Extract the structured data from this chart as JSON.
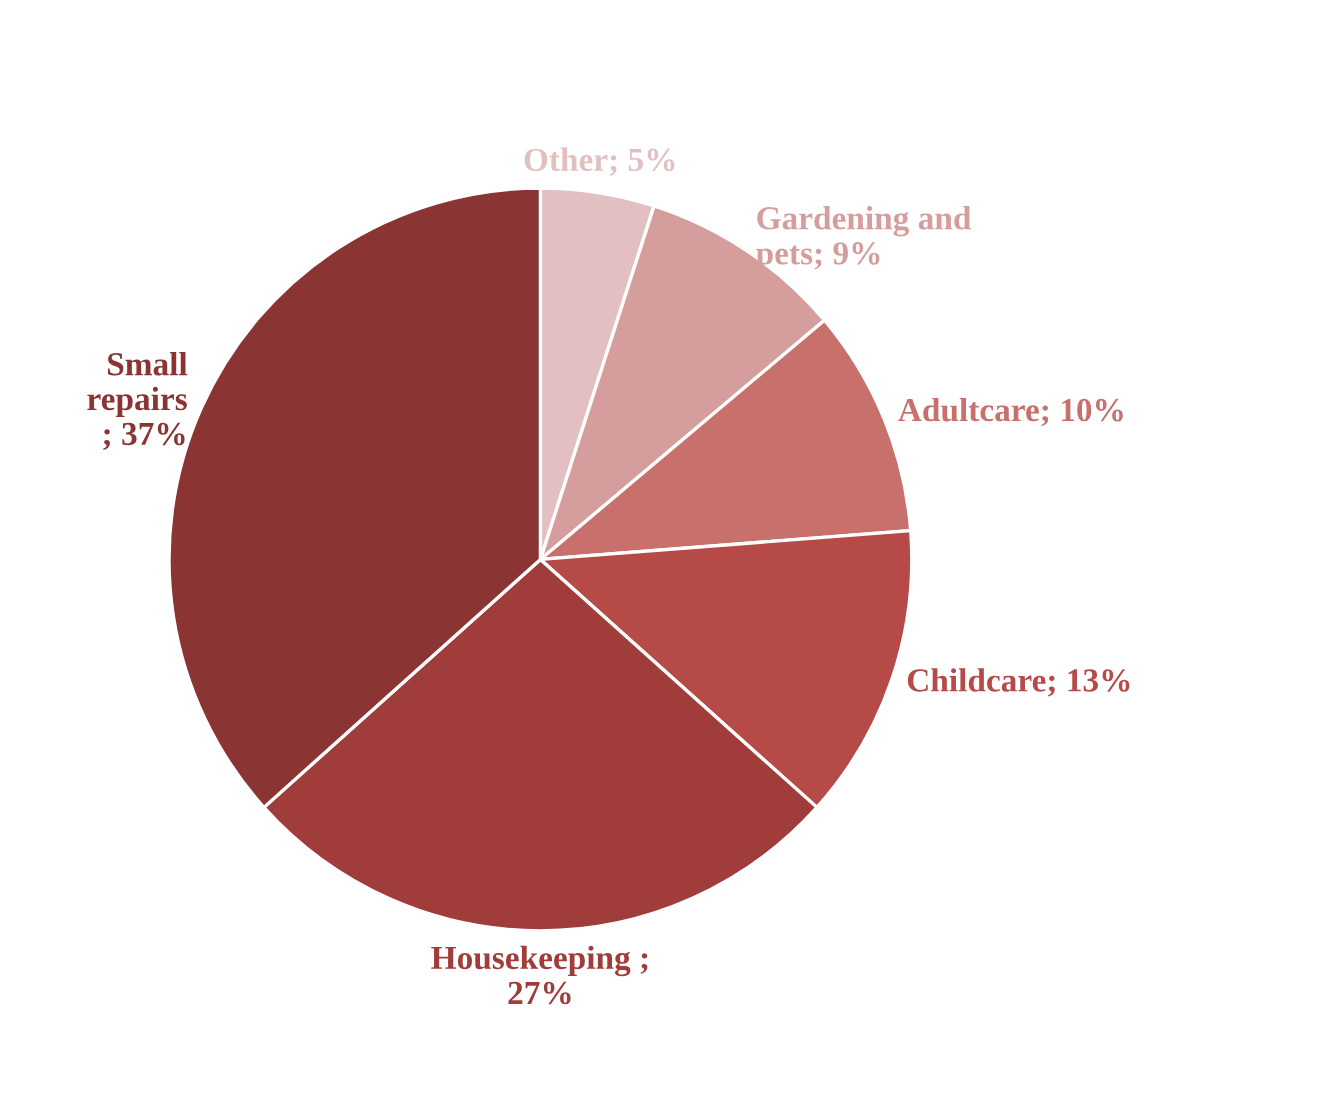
{
  "chart_data": {
    "type": "pie",
    "categories": [
      "Other; 5%",
      "Gardening and\npets; 9%",
      "Adultcare; 10%",
      "Childcare; 13%",
      "Housekeeping ;\n27%",
      "Small\nrepairs\n; 37%"
    ],
    "values": [
      5,
      9,
      10,
      13,
      27,
      37
    ],
    "colors": [
      "#e2c0c1",
      "#d59e9d",
      "#c8706c",
      "#b54a46",
      "#a03c3a",
      "#8a3433"
    ],
    "legend": false
  }
}
